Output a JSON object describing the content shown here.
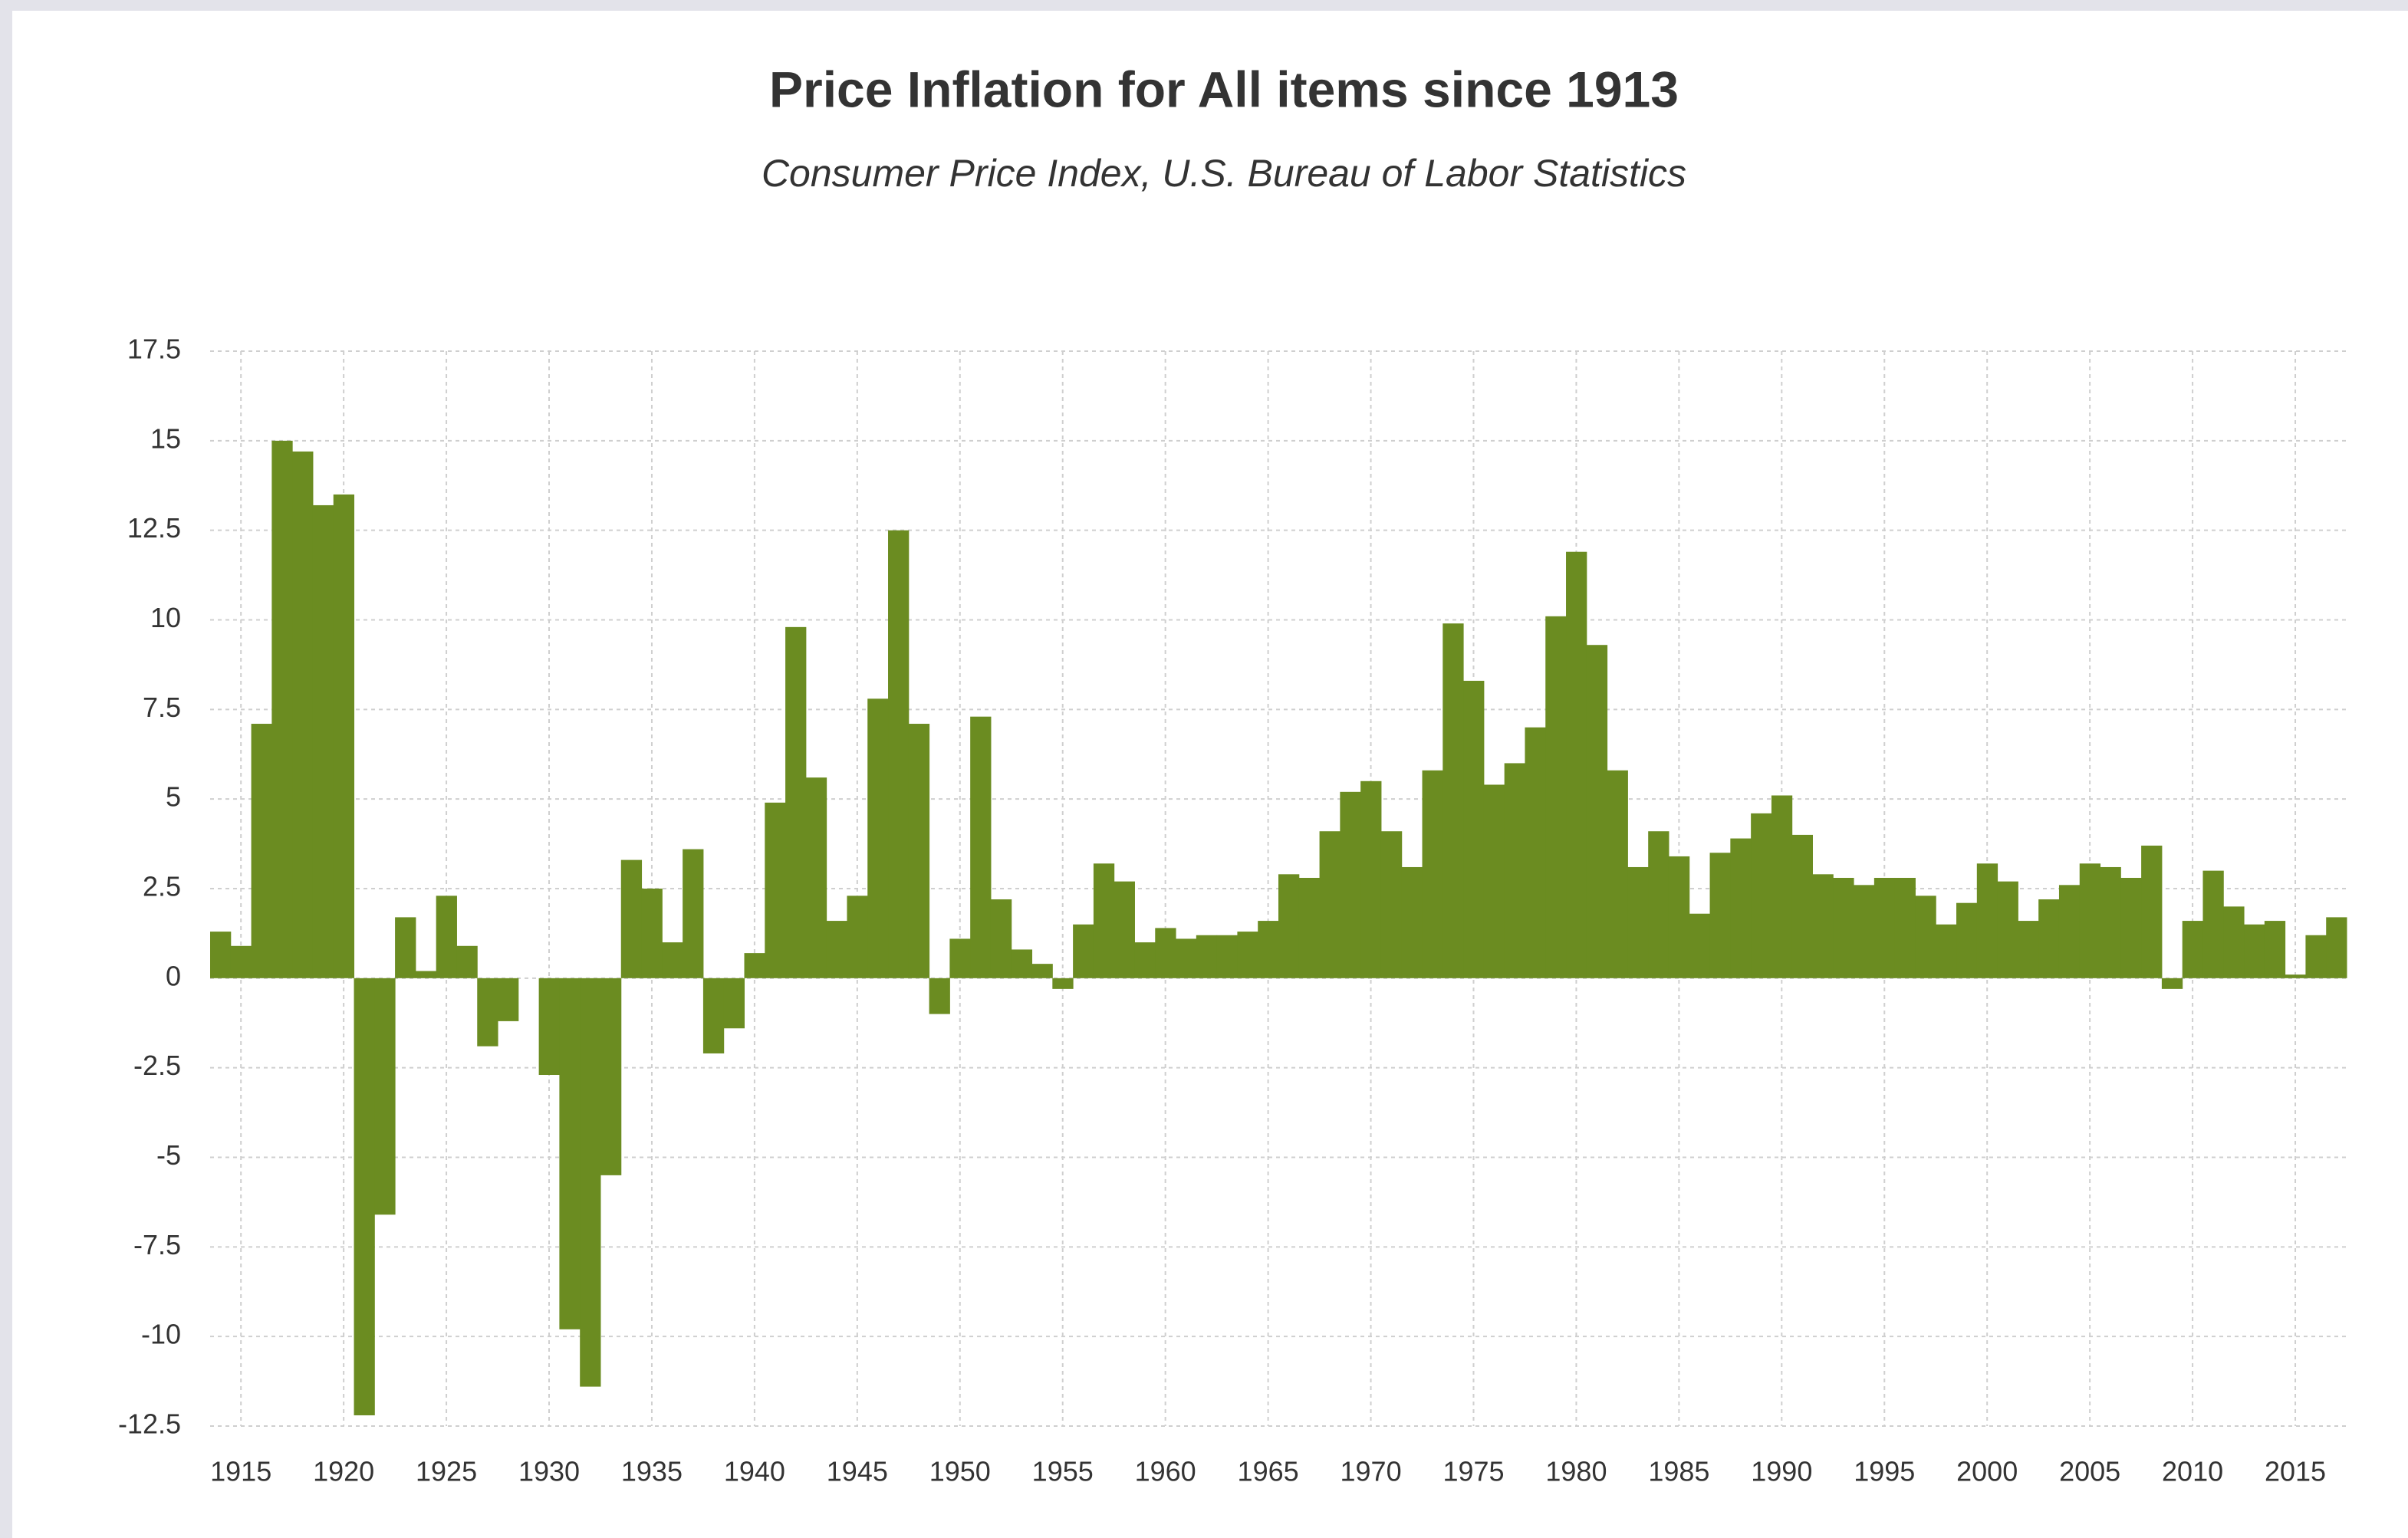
{
  "chart_data": {
    "type": "bar",
    "title": "Price Inflation for All items since 1913",
    "subtitle": "Consumer Price Index, U.S. Bureau of Labor Statistics",
    "x": [
      1914,
      1915,
      1916,
      1917,
      1918,
      1919,
      1920,
      1921,
      1922,
      1923,
      1924,
      1925,
      1926,
      1927,
      1928,
      1929,
      1930,
      1931,
      1932,
      1933,
      1934,
      1935,
      1936,
      1937,
      1938,
      1939,
      1940,
      1941,
      1942,
      1943,
      1944,
      1945,
      1946,
      1947,
      1948,
      1949,
      1950,
      1951,
      1952,
      1953,
      1954,
      1955,
      1956,
      1957,
      1958,
      1959,
      1960,
      1961,
      1962,
      1963,
      1964,
      1965,
      1966,
      1967,
      1968,
      1969,
      1970,
      1971,
      1972,
      1973,
      1974,
      1975,
      1976,
      1977,
      1978,
      1979,
      1980,
      1981,
      1982,
      1983,
      1984,
      1985,
      1986,
      1987,
      1988,
      1989,
      1990,
      1991,
      1992,
      1993,
      1994,
      1995,
      1996,
      1997,
      1998,
      1999,
      2000,
      2001,
      2002,
      2003,
      2004,
      2005,
      2006,
      2007,
      2008,
      2009,
      2010,
      2011,
      2012,
      2013,
      2014,
      2015,
      2016,
      2017
    ],
    "values": [
      1.3,
      0.9,
      7.1,
      15.0,
      14.7,
      13.2,
      13.5,
      -12.2,
      -6.6,
      1.7,
      0.2,
      2.3,
      0.9,
      -1.9,
      -1.2,
      0,
      -2.7,
      -9.8,
      -11.4,
      -5.5,
      3.3,
      2.5,
      1.0,
      3.6,
      -2.1,
      -1.4,
      0.7,
      4.9,
      9.8,
      5.6,
      1.6,
      2.3,
      7.8,
      12.5,
      7.1,
      -1.0,
      1.1,
      7.3,
      2.2,
      0.8,
      0.4,
      -0.3,
      1.5,
      3.2,
      2.7,
      1.0,
      1.4,
      1.1,
      1.2,
      1.2,
      1.3,
      1.6,
      2.9,
      2.8,
      4.1,
      5.2,
      5.5,
      4.1,
      3.1,
      5.8,
      9.9,
      8.3,
      5.4,
      6.0,
      7.0,
      10.1,
      11.9,
      9.3,
      5.8,
      3.1,
      4.1,
      3.4,
      1.8,
      3.5,
      3.9,
      4.6,
      5.1,
      4.0,
      2.9,
      2.8,
      2.6,
      2.8,
      2.8,
      2.3,
      1.5,
      2.1,
      3.2,
      2.7,
      1.6,
      2.2,
      2.6,
      3.2,
      3.1,
      2.8,
      3.7,
      -0.3,
      1.6,
      3.0,
      2.0,
      1.5,
      1.6,
      0.1,
      1.2,
      1.7
    ],
    "color": "#6b8c21",
    "xlim": [
      1913.5,
      2017.5
    ],
    "xticks": [
      1915,
      1920,
      1925,
      1930,
      1935,
      1940,
      1945,
      1950,
      1955,
      1960,
      1965,
      1970,
      1975,
      1980,
      1985,
      1990,
      1995,
      2000,
      2005,
      2010,
      2015
    ],
    "ylim": [
      -12.5,
      17.5
    ],
    "yticks": [
      -12.5,
      -10,
      -7.5,
      -5,
      -2.5,
      0,
      2.5,
      5,
      7.5,
      10,
      12.5,
      15,
      17.5
    ],
    "grid": true
  }
}
